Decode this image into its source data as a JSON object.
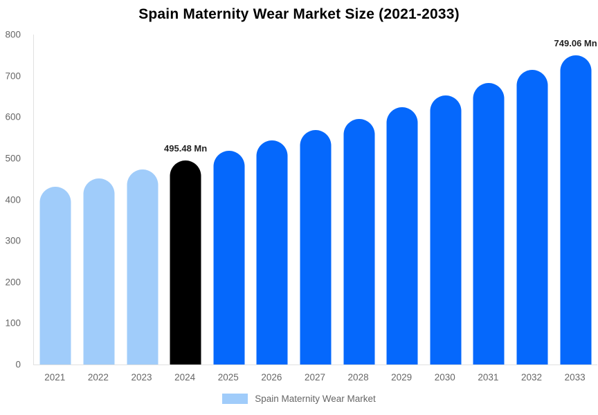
{
  "chart_data": {
    "type": "bar",
    "title": "Spain Maternity Wear Market Size (2021-2033)",
    "categories": [
      "2021",
      "2022",
      "2023",
      "2024",
      "2025",
      "2026",
      "2027",
      "2028",
      "2029",
      "2030",
      "2031",
      "2032",
      "2033"
    ],
    "values": [
      431.6,
      451.9,
      473.2,
      495.48,
      518.8,
      543.2,
      568.7,
      595.4,
      623.3,
      652.6,
      683.2,
      715.3,
      749.06
    ],
    "bar_colors": [
      "#A0CCFA",
      "#A0CCFA",
      "#A0CCFA",
      "#000000",
      "#0568FC",
      "#0568FC",
      "#0568FC",
      "#0568FC",
      "#0568FC",
      "#0568FC",
      "#0568FC",
      "#0568FC",
      "#0568FC"
    ],
    "data_labels": [
      {
        "index": 3,
        "text": "495.48 Mn"
      },
      {
        "index": 12,
        "text": "749.06 Mn"
      }
    ],
    "ylim": [
      0,
      800
    ],
    "yticks": [
      0,
      100,
      200,
      300,
      400,
      500,
      600,
      700,
      800
    ],
    "xlabel": "",
    "ylabel": "",
    "grid": false,
    "legend": {
      "position": "bottom",
      "label": "Spain Maternity Wear Market",
      "swatch_color": "#A0CCFA"
    }
  },
  "colors": {
    "historical_bar": "#A0CCFA",
    "highlight_bar": "#000000",
    "forecast_bar": "#0568FC",
    "axis_line": "#E0E0E0",
    "tick_text": "#666666",
    "data_label_text": "#222222",
    "title_text": "#000000",
    "background": "#FFFFFF"
  }
}
